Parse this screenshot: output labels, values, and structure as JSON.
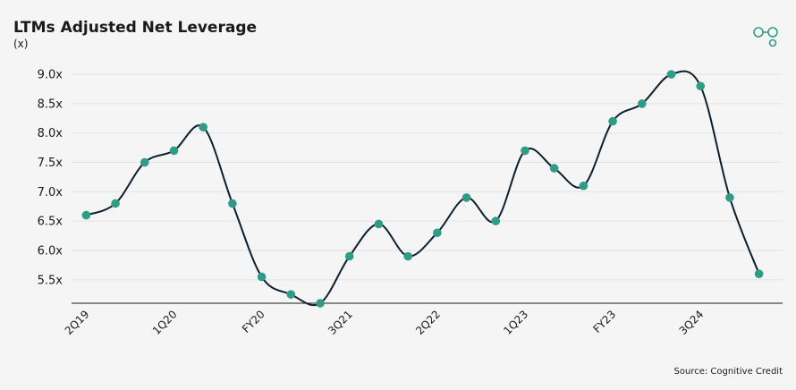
{
  "chart_data": {
    "type": "line",
    "title": "LTMs Adjusted Net Leverage",
    "subtitle": "(x)",
    "source": "Source: Cognitive Credit",
    "categories": [
      "2Q19",
      null,
      null,
      "1Q20",
      null,
      null,
      "FY20",
      null,
      null,
      "3Q21",
      null,
      null,
      "2Q22",
      null,
      null,
      "1Q23",
      null,
      null,
      "FY23",
      null,
      null,
      "3Q24",
      null,
      null
    ],
    "series": [
      {
        "name": "LTMs Adjusted Net Leverage",
        "color": "#0d1f2d",
        "marker_color": "#2e9c87",
        "values": [
          6.6,
          6.8,
          7.5,
          7.7,
          8.1,
          6.8,
          5.55,
          5.25,
          5.1,
          5.9,
          6.45,
          5.9,
          6.3,
          6.9,
          6.5,
          7.7,
          7.4,
          7.1,
          8.2,
          8.5,
          9.0,
          8.8,
          6.9,
          5.6
        ]
      }
    ],
    "ylim": [
      5.1,
      9.2
    ],
    "yticks": [
      {
        "value": 5.5,
        "label": "5.5x"
      },
      {
        "value": 6.0,
        "label": "6.0x"
      },
      {
        "value": 6.5,
        "label": "6.5x"
      },
      {
        "value": 7.0,
        "label": "7.0x"
      },
      {
        "value": 7.5,
        "label": "7.5x"
      },
      {
        "value": 8.0,
        "label": "8.0x"
      },
      {
        "value": 8.5,
        "label": "8.5x"
      },
      {
        "value": 9.0,
        "label": "9.0x"
      }
    ],
    "grid": true
  }
}
